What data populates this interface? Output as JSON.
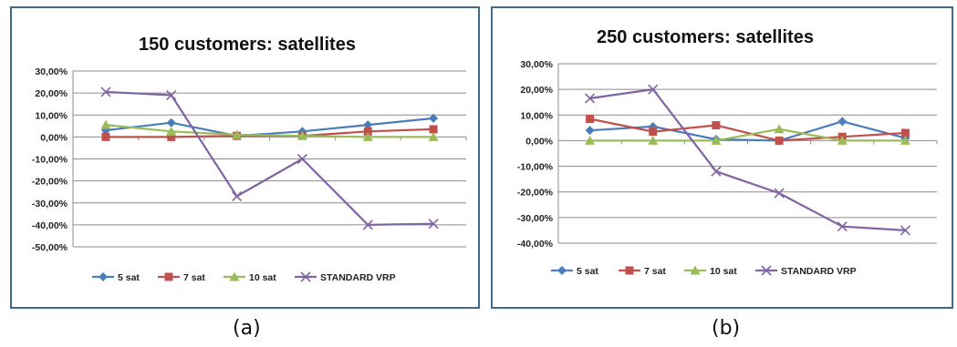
{
  "colors": {
    "5 sat": "#4a7ebb",
    "7 sat": "#c0504d",
    "10 sat": "#9bbb59",
    "STANDARD VRP": "#8064a2"
  },
  "chart_data": [
    {
      "type": "line",
      "title": "150 customers: satellites",
      "xlabel": "",
      "ylabel": "",
      "ylim": [
        -0.5,
        0.3
      ],
      "yticks": [
        0.3,
        0.2,
        0.1,
        0.0,
        -0.1,
        -0.2,
        -0.3,
        -0.4,
        -0.5
      ],
      "ytick_labels": [
        "30,00%",
        "20,00%",
        "10,00%",
        "0,00%",
        "-10,00%",
        "-20,00%",
        "-30,00%",
        "-40,00%",
        "-50,00%"
      ],
      "x": [
        1,
        2,
        3,
        4,
        5,
        6
      ],
      "grid": true,
      "legend": "bottom",
      "series": [
        {
          "name": "5 sat",
          "marker": "diamond",
          "values": [
            0.03,
            0.065,
            0.005,
            0.025,
            0.055,
            0.085
          ]
        },
        {
          "name": "7 sat",
          "marker": "square",
          "values": [
            0.0,
            0.0,
            0.005,
            0.005,
            0.025,
            0.035
          ]
        },
        {
          "name": "10 sat",
          "marker": "triangle",
          "values": [
            0.055,
            0.025,
            0.01,
            0.005,
            0.0,
            0.0
          ]
        },
        {
          "name": "STANDARD VRP",
          "marker": "x",
          "values": [
            0.205,
            0.19,
            -0.27,
            -0.1,
            -0.4,
            -0.395
          ]
        }
      ],
      "caption": "(a)"
    },
    {
      "type": "line",
      "title": "250 customers: satellites",
      "xlabel": "",
      "ylabel": "",
      "ylim": [
        -0.4,
        0.3
      ],
      "yticks": [
        0.3,
        0.2,
        0.1,
        0.0,
        -0.1,
        -0.2,
        -0.3,
        -0.4
      ],
      "ytick_labels": [
        "30,00%",
        "20,00%",
        "10,00%",
        "0,00%",
        "-10,00%",
        "-20,00%",
        "-30,00%",
        "-40,00%"
      ],
      "x": [
        1,
        2,
        3,
        4,
        5,
        6
      ],
      "grid": true,
      "legend": "bottom",
      "series": [
        {
          "name": "5 sat",
          "marker": "diamond",
          "values": [
            0.04,
            0.055,
            0.005,
            0.0,
            0.075,
            0.01
          ]
        },
        {
          "name": "7 sat",
          "marker": "square",
          "values": [
            0.085,
            0.035,
            0.06,
            0.0,
            0.015,
            0.03
          ]
        },
        {
          "name": "10 sat",
          "marker": "triangle",
          "values": [
            0.0,
            0.0,
            0.0,
            0.045,
            0.0,
            0.0
          ]
        },
        {
          "name": "STANDARD VRP",
          "marker": "x",
          "values": [
            0.165,
            0.2,
            -0.12,
            -0.205,
            -0.335,
            -0.35
          ]
        }
      ],
      "caption": "(b)"
    }
  ]
}
